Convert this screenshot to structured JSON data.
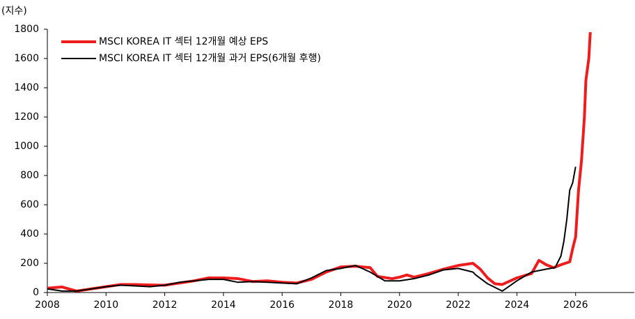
{
  "chart_data": {
    "type": "line",
    "y_unit_label": "(지수)",
    "xlim": [
      2008,
      2028
    ],
    "xticks": [
      2008,
      2010,
      2012,
      2014,
      2016,
      2018,
      2020,
      2022,
      2024,
      2026
    ],
    "ylim": [
      0,
      1800
    ],
    "yticks": [
      0,
      200,
      400,
      600,
      800,
      1000,
      1200,
      1400,
      1600,
      1800
    ],
    "legend": "top-left",
    "series": [
      {
        "name": "MSCI KOREA IT 섹터 12개월 예상 EPS",
        "color": "#ee1c1c",
        "x": [
          2008,
          2008.5,
          2009,
          2009.5,
          2010,
          2010.5,
          2011,
          2011.5,
          2012,
          2012.5,
          2013,
          2013.5,
          2014,
          2014.5,
          2015,
          2015.5,
          2016,
          2016.5,
          2017,
          2017.5,
          2018,
          2018.5,
          2019,
          2019.25,
          2019.75,
          2020,
          2020.25,
          2020.5,
          2021,
          2021.5,
          2022,
          2022.5,
          2022.75,
          2023,
          2023.25,
          2023.5,
          2024,
          2024.5,
          2024.75,
          2025,
          2025.25,
          2025.5,
          2025.8,
          2025.9,
          2026,
          2026.1,
          2026.2,
          2026.3,
          2026.35,
          2026.45,
          2026.5
        ],
        "values": [
          30,
          38,
          10,
          25,
          40,
          55,
          55,
          52,
          50,
          65,
          80,
          100,
          100,
          95,
          75,
          80,
          70,
          65,
          90,
          140,
          175,
          180,
          170,
          110,
          95,
          105,
          120,
          105,
          130,
          160,
          185,
          200,
          160,
          100,
          60,
          55,
          100,
          130,
          220,
          190,
          170,
          190,
          210,
          300,
          380,
          700,
          900,
          1200,
          1450,
          1600,
          1780
        ]
      },
      {
        "name": "MSCI KOREA IT 섹터 12개월 과거 EPS(6개월 후행)",
        "color": "#000000",
        "x": [
          2008,
          2008.5,
          2009,
          2009.5,
          2010,
          2010.5,
          2011,
          2011.5,
          2012,
          2012.5,
          2013,
          2013.5,
          2014,
          2014.5,
          2015,
          2015.5,
          2016,
          2016.5,
          2017,
          2017.5,
          2018,
          2018.5,
          2019,
          2019.5,
          2020,
          2020.5,
          2021,
          2021.5,
          2022,
          2022.5,
          2022.6,
          2023,
          2023.5,
          2024,
          2024.5,
          2025,
          2025.3,
          2025.5,
          2025.6,
          2025.7,
          2025.8,
          2025.9,
          2026
        ],
        "values": [
          25,
          10,
          10,
          25,
          40,
          50,
          45,
          40,
          50,
          70,
          80,
          90,
          90,
          70,
          75,
          70,
          65,
          60,
          100,
          150,
          165,
          185,
          140,
          80,
          80,
          95,
          120,
          155,
          165,
          140,
          120,
          60,
          10,
          80,
          140,
          160,
          170,
          250,
          350,
          500,
          700,
          750,
          860
        ]
      }
    ]
  }
}
